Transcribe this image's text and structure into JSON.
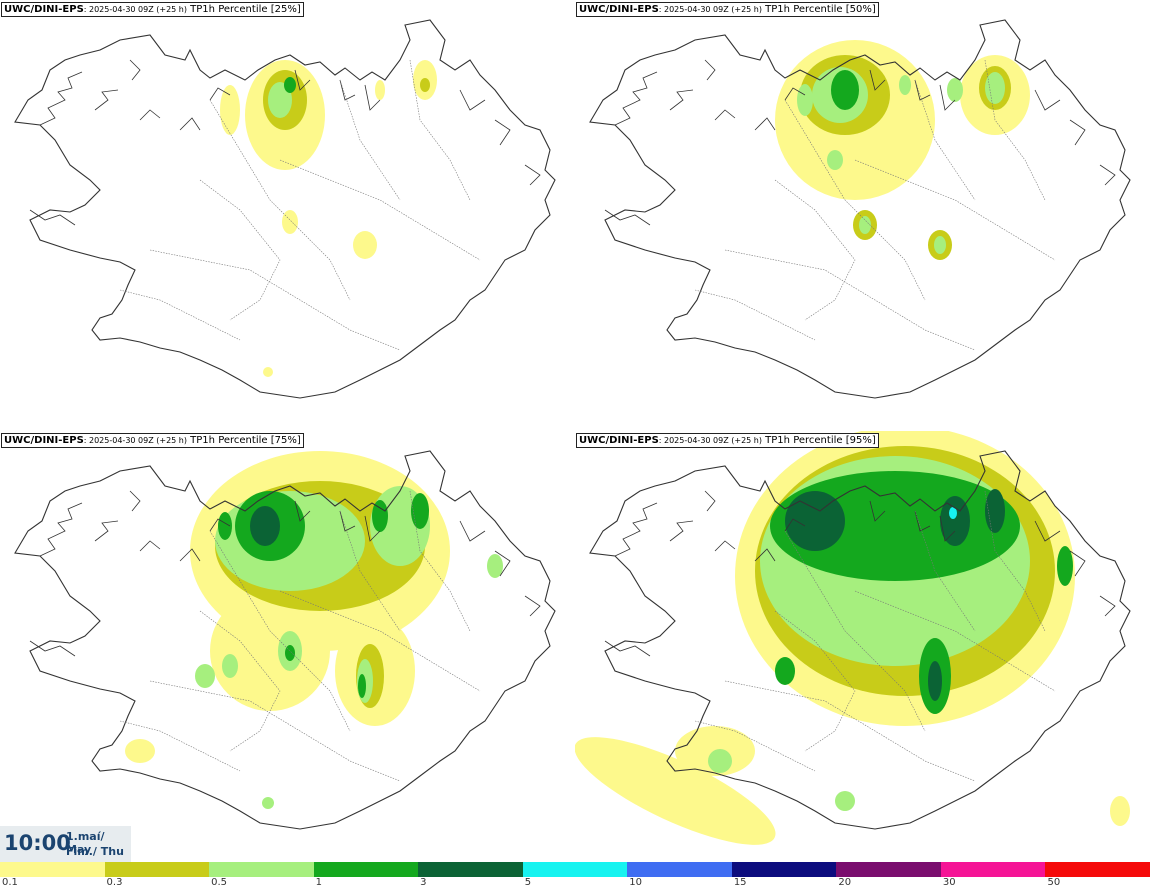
{
  "panels": [
    {
      "model": "UWC/DINI-EPS",
      "run": ": 2025-04-30 09Z (+25 h)",
      "label": "TP1h Percentile [25%]"
    },
    {
      "model": "UWC/DINI-EPS",
      "run": ": 2025-04-30 09Z (+25 h)",
      "label": "TP1h Percentile [50%]"
    },
    {
      "model": "UWC/DINI-EPS",
      "run": ": 2025-04-30 09Z (+25 h)",
      "label": "TP1h Percentile [75%]"
    },
    {
      "model": "UWC/DINI-EPS",
      "run": ": 2025-04-30 09Z (+25 h)",
      "label": "TP1h Percentile [95%]"
    }
  ],
  "valid_time": {
    "clock": "10:00",
    "date_line": "1.maí/ May",
    "day_line": "Fim./ Thu"
  },
  "legend": {
    "ticks": [
      "0.1",
      "0.3",
      "0.5",
      "1",
      "3",
      "5",
      "10",
      "15",
      "20",
      "30",
      "50"
    ],
    "colors": [
      "#fdf98c",
      "#c8cc19",
      "#a6ef7e",
      "#14a81e",
      "#0b6335",
      "#17f3f0",
      "#3f6df2",
      "#0c0c7e",
      "#7a0d6e",
      "#f51496",
      "#f50a0a"
    ]
  }
}
